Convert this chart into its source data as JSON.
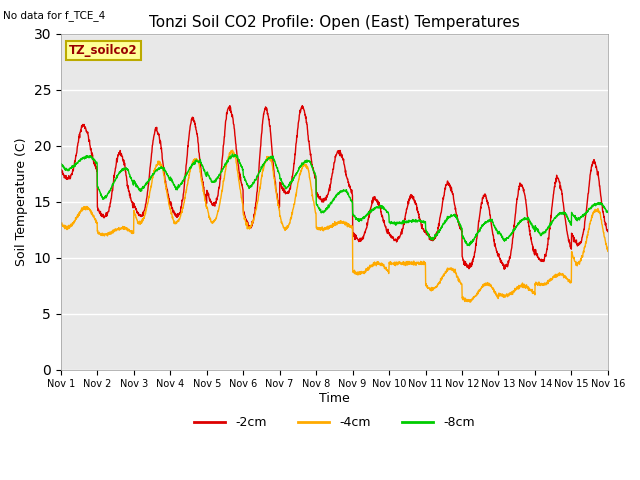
{
  "title": "Tonzi Soil CO2 Profile: Open (East) Temperatures",
  "no_data_note": "No data for f_TCE_4",
  "ylabel": "Soil Temperature (C)",
  "xlabel": "Time",
  "legend_label": "TZ_soilco2",
  "ylim": [
    0,
    30
  ],
  "yticks": [
    0,
    5,
    10,
    15,
    20,
    25,
    30
  ],
  "series_labels": [
    "-2cm",
    "-4cm",
    "-8cm"
  ],
  "series_colors": [
    "#dd0000",
    "#ffaa00",
    "#00cc00"
  ],
  "plot_bg_color": "#e8e8e8",
  "grid_color": "#ffffff",
  "title_fontsize": 11,
  "label_fontsize": 9,
  "tick_fontsize": 7,
  "n_days": 15,
  "n_per_day": 144
}
